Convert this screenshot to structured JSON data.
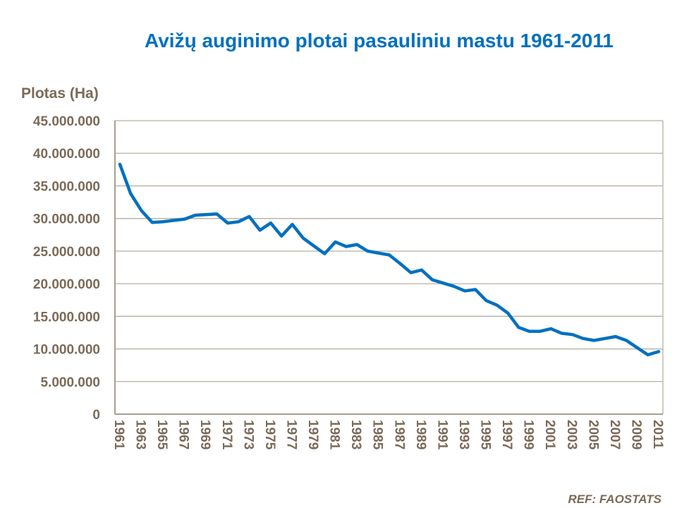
{
  "chart_data": {
    "type": "line",
    "title": "Avižų auginimo plotai pasauliniu mastu 1961-2011",
    "ylabel": "Plotas (Ha)",
    "xlabel": "",
    "ylim": [
      0,
      45000000
    ],
    "yticks": [
      "0",
      "5.000.000",
      "10.000.000",
      "15.000.000",
      "20.000.000",
      "25.000.000",
      "30.000.000",
      "35.000.000",
      "40.000.000",
      "45.000.000"
    ],
    "x": [
      1961,
      1962,
      1963,
      1964,
      1965,
      1966,
      1967,
      1968,
      1969,
      1970,
      1971,
      1972,
      1973,
      1974,
      1975,
      1976,
      1977,
      1978,
      1979,
      1980,
      1981,
      1982,
      1983,
      1984,
      1985,
      1986,
      1987,
      1988,
      1989,
      1990,
      1991,
      1992,
      1993,
      1994,
      1995,
      1996,
      1997,
      1998,
      1999,
      2000,
      2001,
      2002,
      2003,
      2004,
      2005,
      2006,
      2007,
      2008,
      2009,
      2010,
      2011
    ],
    "xticks": [
      "1961",
      "1963",
      "1965",
      "1967",
      "1969",
      "1971",
      "1973",
      "1975",
      "1977",
      "1979",
      "1981",
      "1983",
      "1985",
      "1987",
      "1989",
      "1991",
      "1993",
      "1995",
      "1997",
      "1999",
      "2001",
      "2003",
      "2005",
      "2007",
      "2009",
      "2011"
    ],
    "values": [
      38300000,
      33800000,
      31200000,
      29400000,
      29500000,
      29700000,
      29900000,
      30500000,
      30600000,
      30700000,
      29300000,
      29500000,
      30300000,
      28200000,
      29300000,
      27300000,
      29100000,
      27000000,
      25800000,
      24600000,
      26400000,
      25700000,
      26000000,
      25000000,
      24700000,
      24400000,
      23100000,
      21700000,
      22100000,
      20600000,
      20100000,
      19600000,
      18900000,
      19100000,
      17400000,
      16700000,
      15500000,
      13300000,
      12700000,
      12700000,
      13100000,
      12400000,
      12200000,
      11600000,
      11300000,
      11600000,
      11900000,
      11300000,
      10200000,
      9100000,
      9600000
    ],
    "grid": true,
    "line_color": "#0070C0",
    "note": "REF: FAOSTATS"
  }
}
